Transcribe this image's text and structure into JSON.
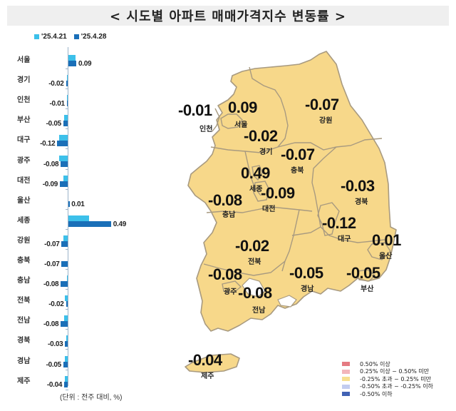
{
  "title": "< 시도별 아파트 매매가격지수 변동률 >",
  "legend": {
    "series": [
      {
        "label": "'25.4.21",
        "color": "#3cc0ea"
      },
      {
        "label": "'25.4.28",
        "color": "#1a6fb8"
      }
    ]
  },
  "unit_note": "(단위 : 전주 대비, %)",
  "chart_data": {
    "type": "bar",
    "orientation": "horizontal",
    "title": "시도별 아파트 매매가격지수 변동률",
    "xlabel": "전주 대비 (%)",
    "ylabel": "",
    "categories": [
      "서울",
      "경기",
      "인천",
      "부산",
      "대구",
      "광주",
      "대전",
      "울산",
      "세종",
      "강원",
      "충북",
      "충남",
      "전북",
      "전남",
      "경북",
      "경남",
      "제주"
    ],
    "series": [
      {
        "name": "'25.4.21",
        "values": [
          0.08,
          -0.01,
          -0.01,
          -0.04,
          -0.1,
          -0.1,
          -0.05,
          0.0,
          0.24,
          -0.05,
          0.0,
          -0.01,
          -0.03,
          -0.04,
          -0.02,
          -0.03,
          -0.03
        ]
      },
      {
        "name": "'25.4.28",
        "values": [
          0.09,
          -0.02,
          -0.01,
          -0.05,
          -0.12,
          -0.08,
          -0.09,
          0.01,
          0.49,
          -0.07,
          -0.07,
          -0.08,
          -0.02,
          -0.08,
          -0.03,
          -0.05,
          -0.04
        ]
      }
    ],
    "data_labels": [
      "0.09",
      "-0.02",
      "-0.01",
      "-0.05",
      "-0.12",
      "-0.08",
      "-0.09",
      "0.01",
      "0.49",
      "-0.07",
      "-0.07",
      "-0.08",
      "-0.02",
      "-0.08",
      "-0.03",
      "-0.05",
      "-0.04"
    ],
    "grid": false,
    "legend_position": "top"
  },
  "map": {
    "fill_color": "#f7d88a",
    "border_color": "#a89a80",
    "regions": [
      {
        "name": "인천",
        "value": "-0.01"
      },
      {
        "name": "서울",
        "value": "0.09"
      },
      {
        "name": "경기",
        "value": "-0.02"
      },
      {
        "name": "강원",
        "value": "-0.07"
      },
      {
        "name": "충북",
        "value": "-0.07"
      },
      {
        "name": "세종",
        "value": "0.49"
      },
      {
        "name": "대전",
        "value": "-0.09"
      },
      {
        "name": "충남",
        "value": "-0.08"
      },
      {
        "name": "경북",
        "value": "-0.03"
      },
      {
        "name": "대구",
        "value": "-0.12"
      },
      {
        "name": "울산",
        "value": "0.01"
      },
      {
        "name": "전북",
        "value": "-0.02"
      },
      {
        "name": "광주",
        "value": "-0.08"
      },
      {
        "name": "전남",
        "value": "-0.08"
      },
      {
        "name": "경남",
        "value": "-0.05"
      },
      {
        "name": "부산",
        "value": "-0.05"
      },
      {
        "name": "제주",
        "value": "-0.04"
      }
    ]
  },
  "map_legend": [
    {
      "label": "0.50% 이상",
      "color": "#e57a82"
    },
    {
      "label": "0.25% 이상 ~ 0.50% 미만",
      "color": "#f3b6bb"
    },
    {
      "label": "-0.25% 초과 ~ 0.25% 미만",
      "color": "#f7df90"
    },
    {
      "label": "-0.50% 초과 ~ -0.25% 이하",
      "color": "#c2ccef"
    },
    {
      "label": "-0.50% 이하",
      "color": "#4162b4"
    }
  ]
}
